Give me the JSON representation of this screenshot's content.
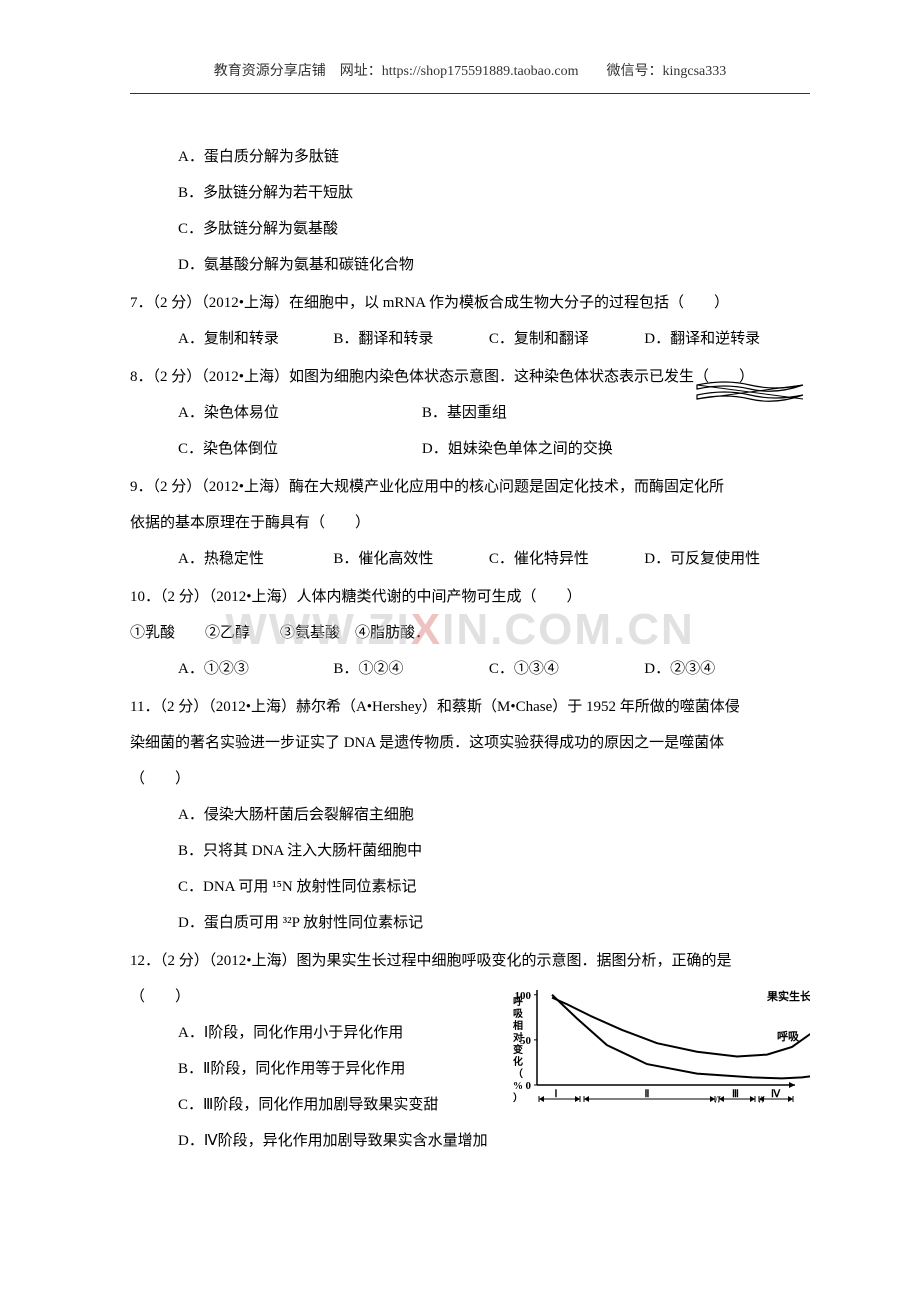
{
  "header": {
    "text": "教育资源分享店铺　网址：https://shop175591889.taobao.com　　微信号：kingcsa333"
  },
  "watermark": {
    "text_left": "WWW.ZI",
    "text_mid": "X",
    "text_right": "IN.COM.CN"
  },
  "q6_options": {
    "a": "A．蛋白质分解为多肽链",
    "b": "B．多肽链分解为若干短肽",
    "c": "C．多肽链分解为氨基酸",
    "d": "D．氨基酸分解为氨基和碳链化合物"
  },
  "q7": {
    "stem": "7．（2 分）（2012•上海）在细胞中，以 mRNA 作为模板合成生物大分子的过程包括（　　）",
    "a": "A．复制和转录",
    "b": "B．翻译和转录",
    "c": "C．复制和翻译",
    "d": "D．翻译和逆转录"
  },
  "q8": {
    "stem": "8．（2 分）（2012•上海）如图为细胞内染色体状态示意图．这种染色体状态表示已发生（　　）",
    "a": "A．染色体易位",
    "b": "B．基因重组",
    "c": "C．染色体倒位",
    "d": "D．姐妹染色单体之间的交换",
    "figure": {
      "stroke": "#000000",
      "fill": "#ffffff"
    }
  },
  "q9": {
    "stem_l1": "9．（2 分）（2012•上海）酶在大规模产业化应用中的核心问题是固定化技术，而酶固定化所",
    "stem_l2": "依据的基本原理在于酶具有（　　）",
    "a": "A．热稳定性",
    "b": "B．催化高效性",
    "c": "C．催化特异性",
    "d": "D．可反复使用性"
  },
  "q10": {
    "stem": "10．（2 分）（2012•上海）人体内糖类代谢的中间产物可生成（　　）",
    "circled": "①乳酸　　②乙醇　　③氨基酸　④脂肪酸．",
    "a": "A．①②③",
    "b": "B．①②④",
    "c": "C．①③④",
    "d": "D．②③④"
  },
  "q11": {
    "stem_l1": "11．（2 分）（2012•上海）赫尔希（A•Hershey）和蔡斯（M•Chase）于 1952 年所做的噬菌体侵",
    "stem_l2": "染细菌的著名实验进一步证实了 DNA 是遗传物质．这项实验获得成功的原因之一是噬菌体",
    "stem_l3": "（　　）",
    "a": "A．侵染大肠杆菌后会裂解宿主细胞",
    "b": "B．只将其 DNA 注入大肠杆菌细胞中",
    "c": "C．DNA 可用 ¹⁵N 放射性同位素标记",
    "d": "D．蛋白质可用 ³²P 放射性同位素标记"
  },
  "q12": {
    "stem_l1": "12．（2 分）（2012•上海）图为果实生长过程中细胞呼吸变化的示意图．据图分析，正确的是",
    "stem_l2": "（　　）",
    "a": "A．Ⅰ阶段，同化作用小于异化作用",
    "b": "B．Ⅱ阶段，同化作用等于异化作用",
    "c": "C．Ⅲ阶段，同化作用加剧导致果实变甜",
    "d": "D．Ⅳ阶段，异化作用加剧导致果实含水量增加",
    "figure": {
      "y_ticks": [
        "100",
        "50",
        "0"
      ],
      "x_segments": [
        "Ⅰ",
        "Ⅱ",
        "Ⅲ",
        "Ⅳ"
      ],
      "label_growth": "果实生长",
      "label_resp": "呼吸",
      "y_axis_label": "呼吸相对变化（%）",
      "curve_growth": [
        [
          15,
          95
        ],
        [
          40,
          70
        ],
        [
          70,
          42
        ],
        [
          110,
          22
        ],
        [
          160,
          12
        ],
        [
          215,
          8
        ],
        [
          245,
          7
        ],
        [
          265,
          8
        ],
        [
          280,
          10
        ]
      ],
      "curve_resp": [
        [
          15,
          92
        ],
        [
          30,
          85
        ],
        [
          55,
          72
        ],
        [
          85,
          58
        ],
        [
          120,
          44
        ],
        [
          160,
          35
        ],
        [
          200,
          30
        ],
        [
          230,
          32
        ],
        [
          255,
          40
        ],
        [
          275,
          55
        ],
        [
          285,
          62
        ]
      ],
      "axis_color": "#000000",
      "background": "#ffffff",
      "font_size_labels": 11,
      "font_size_axis": 11
    }
  }
}
